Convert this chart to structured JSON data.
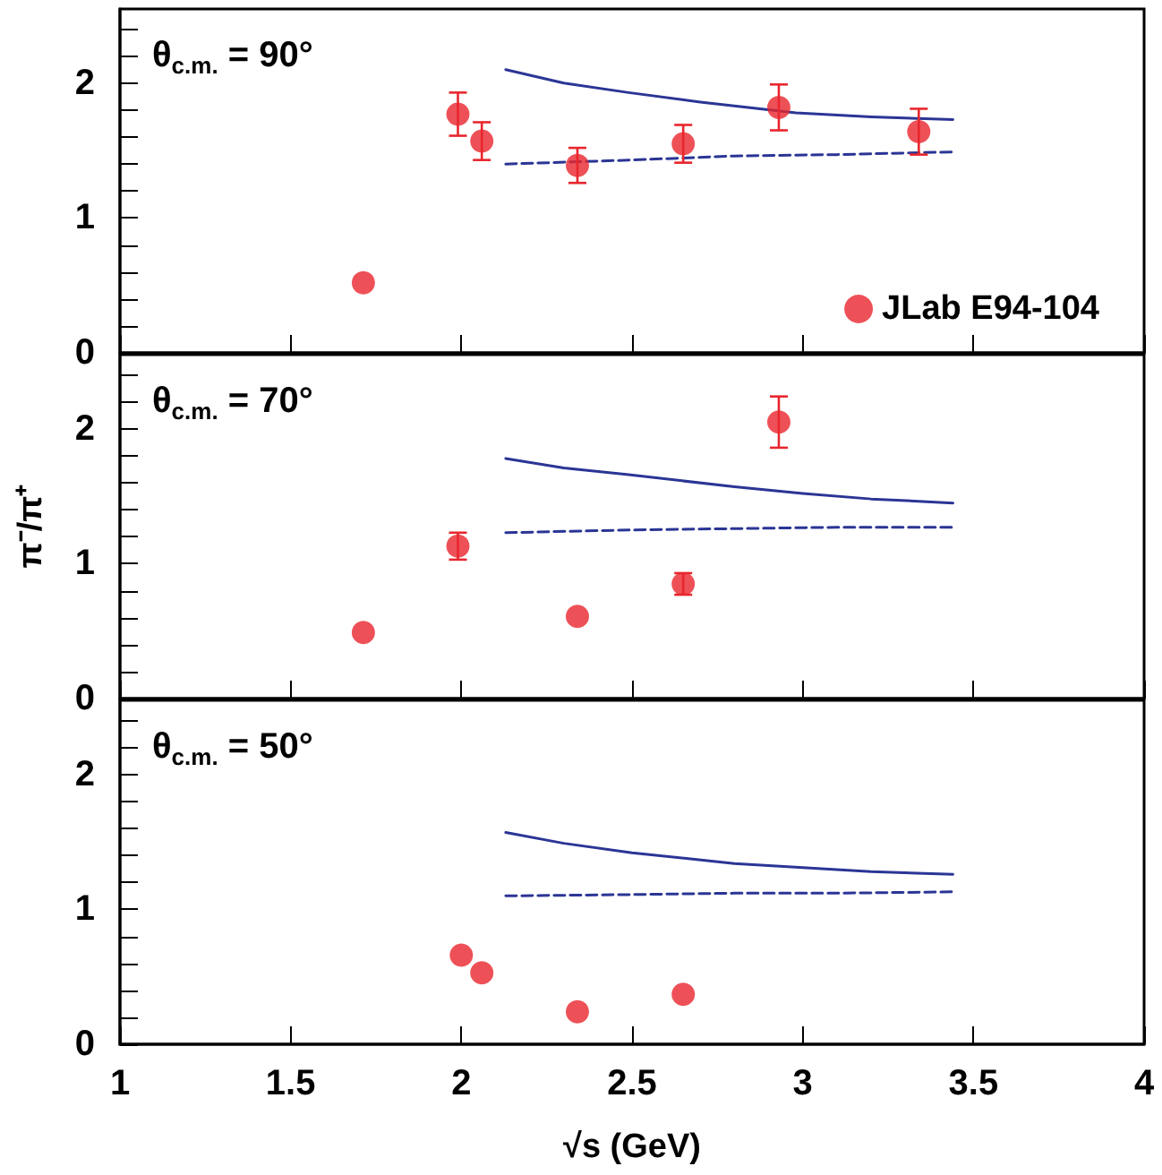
{
  "chart_data": [
    {
      "type": "scatter",
      "title": "θ$_{c.m.}$ = 90°",
      "xlim": [
        1,
        4
      ],
      "xticks": [
        1,
        {
          "value": 1.5,
          "label": null
        },
        2,
        {
          "value": 2.5,
          "label": null
        },
        3,
        {
          "value": 3.5,
          "label": null
        },
        4
      ],
      "ylim": [
        0,
        2.55
      ],
      "yticks": [
        0,
        {
          "value": 0.2,
          "label": null
        },
        {
          "value": 0.4,
          "label": null
        },
        {
          "value": 0.6,
          "label": null
        },
        {
          "value": 0.8,
          "label": null
        },
        1,
        {
          "value": 1.2,
          "label": null
        },
        {
          "value": 1.4,
          "label": null
        },
        {
          "value": 1.6,
          "label": null
        },
        {
          "value": 1.8,
          "label": null
        },
        2,
        {
          "value": 2.2,
          "label": null
        },
        {
          "value": 2.4,
          "label": null
        }
      ],
      "tick_labels": "y",
      "legend": "bottom right",
      "grid": false,
      "series": [
        {
          "type": "line",
          "color": "#2b3595",
          "line_style": "solid",
          "marker": "none",
          "x": [
            2.13,
            2.3,
            2.49,
            2.7,
            2.98,
            3.2,
            3.44
          ],
          "values": [
            2.1,
            2.0,
            1.93,
            1.86,
            1.78,
            1.75,
            1.73
          ]
        },
        {
          "type": "line",
          "color": "#2b3595",
          "line_style": "dashed",
          "marker": "none",
          "x": [
            2.13,
            2.5,
            2.8,
            3.1,
            3.44
          ],
          "values": [
            1.4,
            1.43,
            1.46,
            1.47,
            1.49
          ]
        },
        {
          "type": "scatter",
          "name": "JLab E94-104",
          "color": "#e8262d",
          "marker": "circle",
          "x": [
            1.713,
            1.99,
            2.06,
            2.34,
            2.65,
            2.93,
            3.34
          ],
          "values": [
            0.52,
            1.77,
            1.57,
            1.39,
            1.55,
            1.82,
            1.64
          ],
          "errors": [
            null,
            0.16,
            0.14,
            0.13,
            0.14,
            0.17,
            0.17
          ]
        }
      ]
    },
    {
      "type": "scatter",
      "title": "θ$_{c.m.}$ = 70°",
      "ylabel": "π⁻/π⁺",
      "xlim": [
        1,
        4
      ],
      "xticks": [
        1,
        {
          "value": 1.5,
          "label": null
        },
        2,
        {
          "value": 2.5,
          "label": null
        },
        3,
        {
          "value": 3.5,
          "label": null
        },
        4
      ],
      "ylim": [
        0,
        2.55
      ],
      "yticks": [
        0,
        {
          "value": 0.2,
          "label": null
        },
        {
          "value": 0.4,
          "label": null
        },
        {
          "value": 0.6,
          "label": null
        },
        {
          "value": 0.8,
          "label": null
        },
        1,
        {
          "value": 1.2,
          "label": null
        },
        {
          "value": 1.4,
          "label": null
        },
        {
          "value": 1.6,
          "label": null
        },
        {
          "value": 1.8,
          "label": null
        },
        2,
        {
          "value": 2.2,
          "label": null
        },
        {
          "value": 2.4,
          "label": null
        }
      ],
      "tick_labels": "y",
      "grid": false,
      "series": [
        {
          "type": "line",
          "color": "#2b3595",
          "line_style": "solid",
          "marker": "none",
          "x": [
            2.13,
            2.3,
            2.49,
            2.8,
            3.0,
            3.2,
            3.44
          ],
          "values": [
            1.78,
            1.71,
            1.66,
            1.57,
            1.52,
            1.48,
            1.45
          ]
        },
        {
          "type": "line",
          "color": "#2b3595",
          "line_style": "dashed",
          "marker": "none",
          "x": [
            2.13,
            2.5,
            2.8,
            3.1,
            3.44
          ],
          "values": [
            1.23,
            1.25,
            1.26,
            1.27,
            1.27
          ]
        },
        {
          "type": "scatter",
          "color": "#e8262d",
          "marker": "circle",
          "x": [
            1.713,
            1.99,
            2.34,
            2.65,
            2.93
          ],
          "values": [
            0.49,
            1.13,
            0.61,
            0.85,
            2.05
          ],
          "errors": [
            null,
            0.1,
            null,
            0.08,
            0.19
          ]
        }
      ]
    },
    {
      "type": "scatter",
      "title": "θ$_{c.m.}$ = 50°",
      "xlabel": "√s (GeV)",
      "xlim": [
        1,
        4
      ],
      "xticks": [
        1,
        1.5,
        2,
        2.5,
        3,
        3.5,
        4
      ],
      "ylim": [
        0,
        2.55
      ],
      "yticks": [
        0,
        {
          "value": 0.2,
          "label": null
        },
        {
          "value": 0.4,
          "label": null
        },
        {
          "value": 0.6,
          "label": null
        },
        {
          "value": 0.8,
          "label": null
        },
        1,
        {
          "value": 1.2,
          "label": null
        },
        {
          "value": 1.4,
          "label": null
        },
        {
          "value": 1.6,
          "label": null
        },
        {
          "value": 1.8,
          "label": null
        },
        2,
        {
          "value": 2.2,
          "label": null
        },
        {
          "value": 2.4,
          "label": null
        }
      ],
      "grid": false,
      "series": [
        {
          "type": "line",
          "color": "#2b3595",
          "line_style": "solid",
          "marker": "none",
          "x": [
            2.13,
            2.3,
            2.5,
            2.8,
            3.0,
            3.2,
            3.44
          ],
          "values": [
            1.57,
            1.49,
            1.42,
            1.34,
            1.31,
            1.28,
            1.26
          ]
        },
        {
          "type": "line",
          "color": "#2b3595",
          "line_style": "dashed",
          "marker": "none",
          "x": [
            2.13,
            2.5,
            2.8,
            3.1,
            3.44
          ],
          "values": [
            1.1,
            1.11,
            1.12,
            1.12,
            1.13
          ]
        },
        {
          "type": "scatter",
          "color": "#e8262d",
          "marker": "circle",
          "x": [
            2.0,
            2.06,
            2.34,
            2.65
          ],
          "values": [
            0.66,
            0.53,
            0.24,
            0.37
          ]
        }
      ]
    }
  ]
}
